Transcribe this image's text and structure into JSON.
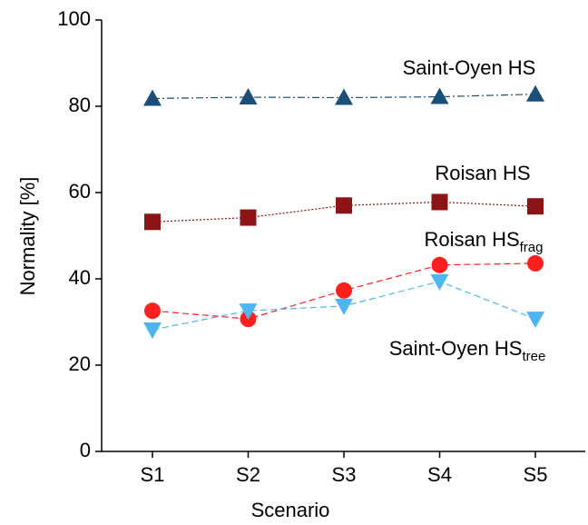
{
  "chart_data": {
    "type": "line",
    "xlabel": "Scenario",
    "ylabel": "Normality [%]",
    "categories": [
      "S1",
      "S2",
      "S3",
      "S4",
      "S5"
    ],
    "ylim": [
      0,
      100
    ],
    "yticks": [
      0,
      20,
      40,
      60,
      80,
      100
    ],
    "grid": false,
    "series": [
      {
        "name": "Saint-Oyen HS",
        "color": "#1b4f78",
        "marker": "triangle-up",
        "dash": "dashdot",
        "values": [
          81.8,
          82.1,
          82.0,
          82.2,
          82.8
        ]
      },
      {
        "name": "Roisan HS",
        "color": "#8b1414",
        "marker": "square",
        "dash": "dot",
        "values": [
          53.2,
          54.2,
          57.0,
          57.8,
          56.8
        ]
      },
      {
        "name": "Roisan HS",
        "name_sub": "frag",
        "color": "#ff1f1f",
        "marker": "circle",
        "dash": "dash",
        "values": [
          32.6,
          30.7,
          37.3,
          43.2,
          43.6
        ]
      },
      {
        "name": "Saint-Oyen HS",
        "name_sub": "tree",
        "color": "#4db6f2",
        "marker": "triangle-down",
        "dash": "dash",
        "values": [
          28.2,
          32.6,
          33.7,
          39.4,
          30.7
        ]
      }
    ]
  }
}
